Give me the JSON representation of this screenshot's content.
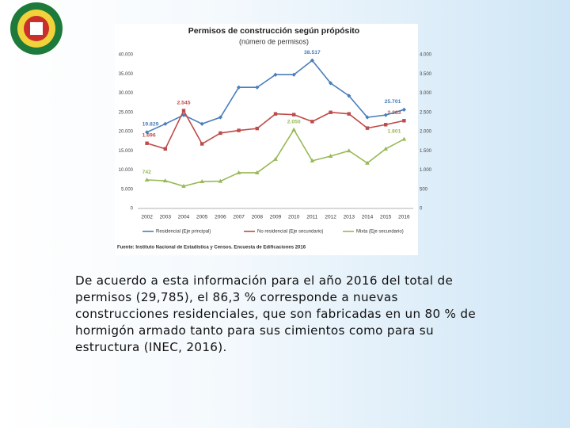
{
  "chart_data": {
    "type": "line",
    "title": "Permisos de construcción según própósito",
    "subtitle": "(número de permisos)",
    "source": "Fuente: Instituto Nacional de Estadística y Censos. Encuesta de Edificaciones 2016",
    "categories": [
      "2002",
      "2003",
      "2004",
      "2005",
      "2006",
      "2007",
      "2008",
      "2009",
      "2010",
      "2011",
      "2012",
      "2013",
      "2014",
      "2015",
      "2016"
    ],
    "series": [
      {
        "name": "Residencial (Eje principal)",
        "color": "#4a7ebb",
        "marker": "diamond",
        "axis": "y",
        "values": [
          19829,
          22000,
          24300,
          22000,
          23700,
          31500,
          31500,
          34800,
          34800,
          38517,
          32600,
          29300,
          23700,
          24300,
          25701
        ],
        "value_labels": [
          "19.829",
          null,
          null,
          null,
          null,
          null,
          null,
          null,
          null,
          "38.517",
          null,
          null,
          null,
          null,
          "25.701"
        ]
      },
      {
        "name": "No residencial (Eje secundario)",
        "color": "#be4b48",
        "marker": "square",
        "axis": "y2",
        "values": [
          1696,
          1550,
          2545,
          1680,
          1960,
          2030,
          2080,
          2460,
          2440,
          2260,
          2500,
          2460,
          2090,
          2180,
          2283
        ],
        "value_labels": [
          "1.696",
          null,
          "2.545",
          null,
          null,
          null,
          null,
          null,
          null,
          null,
          null,
          null,
          null,
          null,
          "2.283"
        ]
      },
      {
        "name": "Mixta (Eje secundario)",
        "color": "#98b954",
        "marker": "triangle",
        "axis": "y2",
        "values": [
          742,
          720,
          580,
          700,
          710,
          930,
          930,
          1280,
          2050,
          1240,
          1360,
          1500,
          1180,
          1550,
          1801
        ],
        "value_labels": [
          "742",
          null,
          null,
          null,
          null,
          null,
          null,
          null,
          "2.050",
          null,
          null,
          null,
          null,
          null,
          "1.801"
        ]
      }
    ],
    "ylim": [
      0,
      40000
    ],
    "yticks": [
      0,
      {
        "value": 5000,
        "label": "5.000"
      },
      {
        "value": 10000,
        "label": "10.000"
      },
      {
        "value": 15000,
        "label": "15.000"
      },
      {
        "value": 20000,
        "label": "20.000"
      },
      {
        "value": 25000,
        "label": "25.000"
      },
      {
        "value": 30000,
        "label": "30.000"
      },
      {
        "value": 35000,
        "label": "35.000"
      },
      {
        "value": 40000,
        "label": "40.000"
      }
    ],
    "y2lim": [
      0,
      4000
    ],
    "y2ticks": [
      0,
      500,
      {
        "value": 1000,
        "label": "1.000"
      },
      {
        "value": 1500,
        "label": "1.500"
      },
      {
        "value": 2000,
        "label": "2.000"
      },
      {
        "value": 2500,
        "label": "2.500"
      },
      {
        "value": 3000,
        "label": "3.000"
      },
      {
        "value": 3500,
        "label": "3.500"
      },
      {
        "value": 4000,
        "label": "4.000"
      }
    ],
    "legend": "bottom"
  },
  "paragraph": "De acuerdo a esta información para el año 2016 del total de permisos (29,785), el 86,3 % corresponde a nuevas construcciones residenciales, que son fabricadas en un 80 % de hormigón armado tanto para sus cimientos como para su estructura (INEC, 2016)."
}
